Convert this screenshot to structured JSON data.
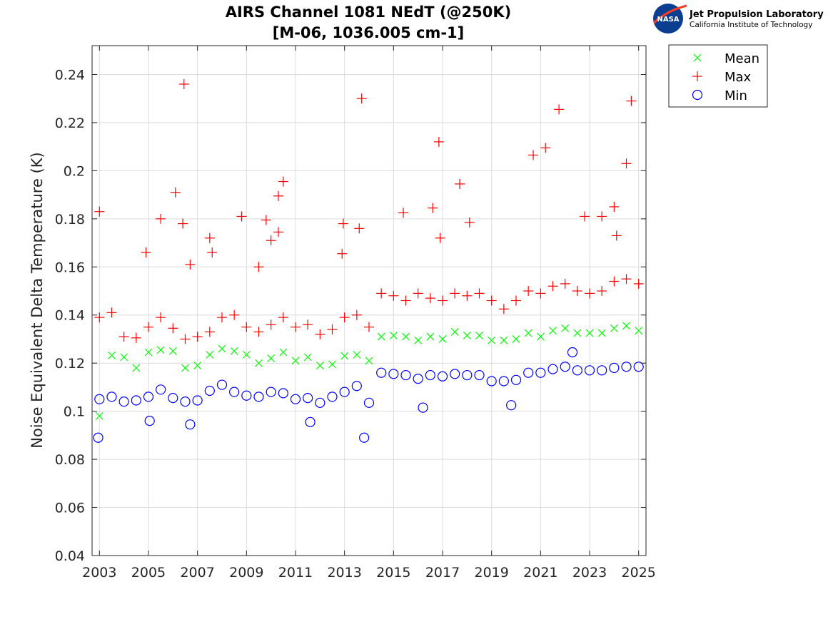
{
  "chart_data": {
    "type": "scatter",
    "title": [
      "AIRS Channel 1081 NEdT (@250K)",
      "[M-06, 1036.005 cm-1]"
    ],
    "xlabel": "",
    "ylabel": "Noise Equivalent Delta Temperature (K)",
    "xlim": [
      2002.7,
      2025.3
    ],
    "ylim": [
      0.04,
      0.252
    ],
    "xticks": [
      2003,
      2005,
      2007,
      2009,
      2011,
      2013,
      2015,
      2017,
      2019,
      2021,
      2023,
      2025
    ],
    "xtick_labels": [
      "2003",
      "2005",
      "2007",
      "2009",
      "2011",
      "2013",
      "2015",
      "2017",
      "2019",
      "2021",
      "2023",
      "2025"
    ],
    "yticks": [
      0.04,
      0.06,
      0.08,
      0.1,
      0.12,
      0.14,
      0.16,
      0.18,
      0.2,
      0.22,
      0.24
    ],
    "ytick_labels": [
      "0.04",
      "0.06",
      "0.08",
      "0.1",
      "0.12",
      "0.14",
      "0.16",
      "0.18",
      "0.2",
      "0.22",
      "0.24"
    ],
    "grid": true,
    "legend_position": "outside top-right",
    "series": [
      {
        "name": "Mean",
        "marker": "x",
        "color": "#00ff00",
        "points": [
          [
            2003.0,
            0.098
          ],
          [
            2003.5,
            0.1232
          ],
          [
            2004.0,
            0.1225
          ],
          [
            2004.5,
            0.118
          ],
          [
            2005.0,
            0.1245
          ],
          [
            2005.5,
            0.1255
          ],
          [
            2006.0,
            0.125
          ],
          [
            2006.5,
            0.118
          ],
          [
            2007.0,
            0.119
          ],
          [
            2007.5,
            0.1235
          ],
          [
            2008.0,
            0.126
          ],
          [
            2008.5,
            0.125
          ],
          [
            2009.0,
            0.1235
          ],
          [
            2009.5,
            0.12
          ],
          [
            2010.0,
            0.122
          ],
          [
            2010.5,
            0.1245
          ],
          [
            2011.0,
            0.121
          ],
          [
            2011.5,
            0.1225
          ],
          [
            2012.0,
            0.119
          ],
          [
            2012.5,
            0.1195
          ],
          [
            2013.0,
            0.123
          ],
          [
            2013.5,
            0.1235
          ],
          [
            2014.0,
            0.121
          ],
          [
            2014.5,
            0.131
          ],
          [
            2015.0,
            0.1315
          ],
          [
            2015.5,
            0.131
          ],
          [
            2016.0,
            0.1295
          ],
          [
            2016.5,
            0.131
          ],
          [
            2017.0,
            0.13
          ],
          [
            2017.5,
            0.133
          ],
          [
            2018.0,
            0.1315
          ],
          [
            2018.5,
            0.1315
          ],
          [
            2019.0,
            0.1295
          ],
          [
            2019.5,
            0.1295
          ],
          [
            2020.0,
            0.13
          ],
          [
            2020.5,
            0.1325
          ],
          [
            2021.0,
            0.131
          ],
          [
            2021.5,
            0.1335
          ],
          [
            2022.0,
            0.1345
          ],
          [
            2022.5,
            0.1325
          ],
          [
            2023.0,
            0.1325
          ],
          [
            2023.5,
            0.1325
          ],
          [
            2024.0,
            0.1345
          ],
          [
            2024.5,
            0.1355
          ],
          [
            2025.0,
            0.1335
          ]
        ]
      },
      {
        "name": "Max",
        "marker": "+",
        "color": "#ff0000",
        "points": [
          [
            2003.0,
            0.139
          ],
          [
            2003.5,
            0.141
          ],
          [
            2004.0,
            0.131
          ],
          [
            2004.5,
            0.1305
          ],
          [
            2005.0,
            0.135
          ],
          [
            2005.5,
            0.139
          ],
          [
            2006.0,
            0.1345
          ],
          [
            2006.5,
            0.13
          ],
          [
            2007.0,
            0.131
          ],
          [
            2007.5,
            0.133
          ],
          [
            2008.0,
            0.139
          ],
          [
            2008.5,
            0.14
          ],
          [
            2009.0,
            0.135
          ],
          [
            2009.5,
            0.133
          ],
          [
            2010.0,
            0.136
          ],
          [
            2010.5,
            0.139
          ],
          [
            2011.0,
            0.135
          ],
          [
            2011.5,
            0.136
          ],
          [
            2012.0,
            0.132
          ],
          [
            2012.5,
            0.134
          ],
          [
            2013.0,
            0.139
          ],
          [
            2013.5,
            0.14
          ],
          [
            2014.0,
            0.135
          ],
          [
            2014.5,
            0.149
          ],
          [
            2015.0,
            0.148
          ],
          [
            2015.5,
            0.146
          ],
          [
            2016.0,
            0.149
          ],
          [
            2016.5,
            0.147
          ],
          [
            2017.0,
            0.146
          ],
          [
            2017.5,
            0.149
          ],
          [
            2018.0,
            0.148
          ],
          [
            2018.5,
            0.149
          ],
          [
            2019.0,
            0.146
          ],
          [
            2019.5,
            0.1425
          ],
          [
            2020.0,
            0.146
          ],
          [
            2020.5,
            0.15
          ],
          [
            2021.0,
            0.149
          ],
          [
            2021.5,
            0.152
          ],
          [
            2022.0,
            0.153
          ],
          [
            2022.5,
            0.15
          ],
          [
            2023.0,
            0.149
          ],
          [
            2023.5,
            0.15
          ],
          [
            2024.0,
            0.154
          ],
          [
            2024.5,
            0.155
          ],
          [
            2025.0,
            0.153
          ],
          [
            2003.0,
            0.183
          ],
          [
            2004.9,
            0.166
          ],
          [
            2005.5,
            0.18
          ],
          [
            2006.1,
            0.191
          ],
          [
            2006.45,
            0.236
          ],
          [
            2006.4,
            0.178
          ],
          [
            2006.7,
            0.161
          ],
          [
            2007.5,
            0.172
          ],
          [
            2007.6,
            0.166
          ],
          [
            2008.8,
            0.181
          ],
          [
            2009.5,
            0.16
          ],
          [
            2009.8,
            0.1795
          ],
          [
            2010.0,
            0.171
          ],
          [
            2010.3,
            0.1745
          ],
          [
            2010.3,
            0.1895
          ],
          [
            2010.5,
            0.1955
          ],
          [
            2012.9,
            0.1655
          ],
          [
            2012.95,
            0.178
          ],
          [
            2013.6,
            0.176
          ],
          [
            2013.7,
            0.23
          ],
          [
            2015.4,
            0.1825
          ],
          [
            2016.6,
            0.1845
          ],
          [
            2016.85,
            0.212
          ],
          [
            2016.9,
            0.172
          ],
          [
            2017.7,
            0.1945
          ],
          [
            2018.1,
            0.1785
          ],
          [
            2020.7,
            0.2065
          ],
          [
            2021.2,
            0.2095
          ],
          [
            2021.75,
            0.2255
          ],
          [
            2022.8,
            0.181
          ],
          [
            2023.5,
            0.181
          ],
          [
            2024.0,
            0.185
          ],
          [
            2024.1,
            0.173
          ],
          [
            2024.5,
            0.203
          ],
          [
            2024.7,
            0.229
          ]
        ]
      },
      {
        "name": "Min",
        "marker": "o",
        "color": "#0000ff",
        "points": [
          [
            2002.95,
            0.089
          ],
          [
            2003.0,
            0.105
          ],
          [
            2003.5,
            0.106
          ],
          [
            2004.0,
            0.104
          ],
          [
            2004.5,
            0.1045
          ],
          [
            2005.0,
            0.106
          ],
          [
            2005.5,
            0.109
          ],
          [
            2006.0,
            0.1055
          ],
          [
            2006.5,
            0.104
          ],
          [
            2007.0,
            0.1045
          ],
          [
            2007.5,
            0.1085
          ],
          [
            2008.0,
            0.111
          ],
          [
            2008.5,
            0.108
          ],
          [
            2009.0,
            0.1065
          ],
          [
            2009.5,
            0.106
          ],
          [
            2010.0,
            0.108
          ],
          [
            2010.5,
            0.1075
          ],
          [
            2011.0,
            0.105
          ],
          [
            2011.5,
            0.1055
          ],
          [
            2012.0,
            0.1035
          ],
          [
            2012.5,
            0.106
          ],
          [
            2013.0,
            0.108
          ],
          [
            2013.5,
            0.1105
          ],
          [
            2014.0,
            0.1035
          ],
          [
            2014.5,
            0.116
          ],
          [
            2015.0,
            0.1155
          ],
          [
            2015.5,
            0.115
          ],
          [
            2016.0,
            0.1135
          ],
          [
            2016.5,
            0.115
          ],
          [
            2017.0,
            0.1145
          ],
          [
            2017.5,
            0.1155
          ],
          [
            2018.0,
            0.115
          ],
          [
            2018.5,
            0.115
          ],
          [
            2019.0,
            0.1125
          ],
          [
            2019.5,
            0.1125
          ],
          [
            2020.0,
            0.113
          ],
          [
            2020.5,
            0.116
          ],
          [
            2021.0,
            0.116
          ],
          [
            2021.5,
            0.1175
          ],
          [
            2022.0,
            0.1185
          ],
          [
            2022.5,
            0.117
          ],
          [
            2023.0,
            0.117
          ],
          [
            2023.5,
            0.117
          ],
          [
            2024.0,
            0.118
          ],
          [
            2024.5,
            0.1185
          ],
          [
            2025.0,
            0.1185
          ],
          [
            2013.8,
            0.089
          ],
          [
            2016.2,
            0.1015
          ],
          [
            2006.7,
            0.0945
          ],
          [
            2005.05,
            0.096
          ],
          [
            2011.6,
            0.0955
          ],
          [
            2019.8,
            0.1025
          ],
          [
            2022.3,
            0.1245
          ]
        ]
      }
    ]
  },
  "logo": {
    "title": "Jet Propulsion Laboratory",
    "subtitle": "California Institute of Technology",
    "badge": "NASA"
  },
  "colors": {
    "mean": "#00ff00",
    "max": "#ff0000",
    "min": "#0000ff",
    "grid": "#dcdcdc",
    "axis": "#262626"
  }
}
